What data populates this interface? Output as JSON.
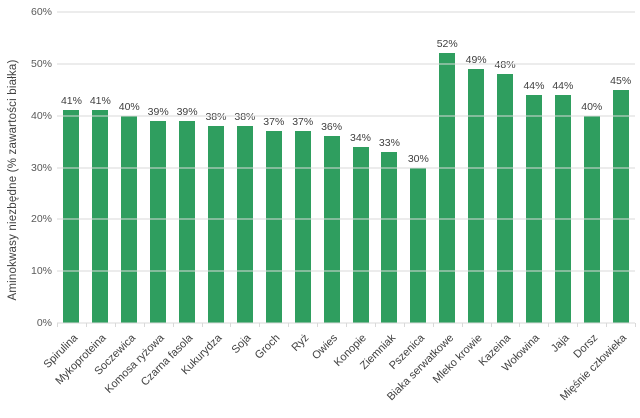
{
  "chart_data": {
    "type": "bar",
    "title": "",
    "xlabel": "",
    "ylabel": "Aminokwasy niezbędne (% zawartości białka)",
    "categories": [
      "Spirulina",
      "Mykoproteina",
      "Soczewica",
      "Komosa ryżowa",
      "Czarna fasola",
      "Kukurydza",
      "Soja",
      "Groch",
      "Ryż",
      "Owies",
      "Konopie",
      "Ziemniak",
      "Pszenica",
      "Biaka serwatkowe",
      "Mleko krowie",
      "Kazeina",
      "Wołowina",
      "Jaja",
      "Dorsz",
      "Mięśnie człowieka"
    ],
    "values": [
      41,
      41,
      40,
      39,
      39,
      38,
      38,
      37,
      37,
      36,
      34,
      33,
      30,
      52,
      49,
      48,
      44,
      44,
      40,
      45
    ],
    "value_labels": [
      "41%",
      "41%",
      "40%",
      "39%",
      "39%",
      "38%",
      "38%",
      "37%",
      "37%",
      "36%",
      "34%",
      "33%",
      "30%",
      "52%",
      "49%",
      "48%",
      "44%",
      "44%",
      "40%",
      "45%"
    ],
    "ylim": [
      0,
      60
    ],
    "yticks": [
      "0%",
      "10%",
      "20%",
      "30%",
      "40%",
      "50%",
      "60%"
    ],
    "grid": "horizontal",
    "legend": "none",
    "bar_color": "#2f9e5f",
    "gridline_color": "#d9d9d9",
    "value_label_color": "#404040",
    "axis_label_color": "#595959",
    "background_color": "#ffffff"
  }
}
